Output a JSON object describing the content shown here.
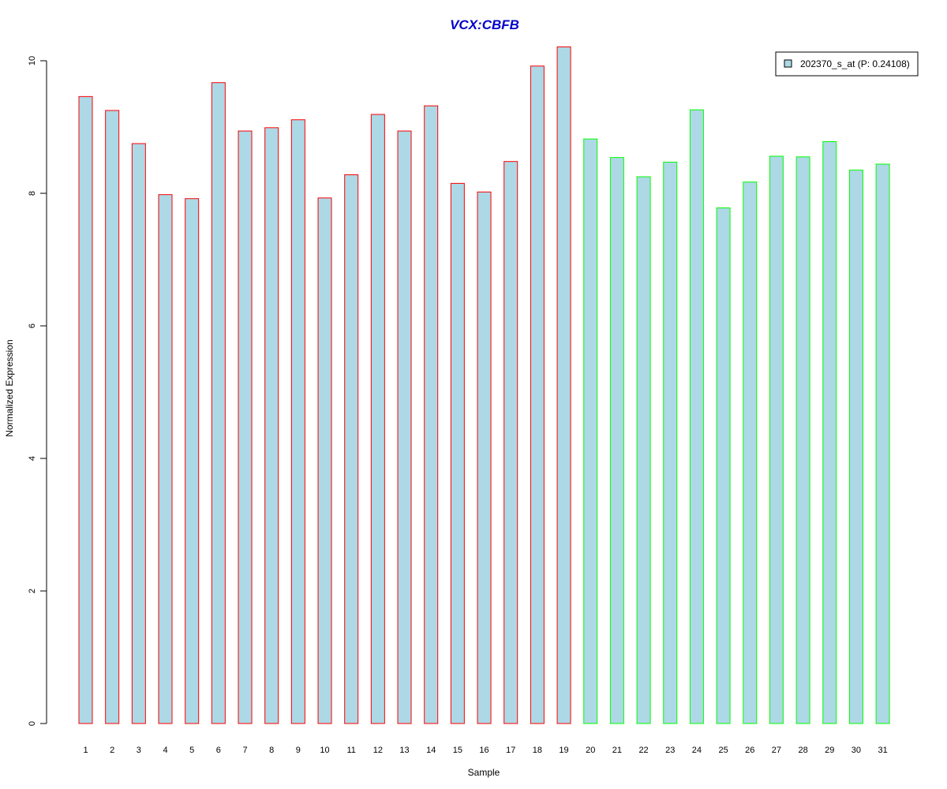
{
  "chart_data": {
    "type": "bar",
    "title": "VCX:CBFB",
    "xlabel": "Sample",
    "ylabel": "Normalized Expression",
    "categories": [
      "1",
      "2",
      "3",
      "4",
      "5",
      "6",
      "7",
      "8",
      "9",
      "10",
      "11",
      "12",
      "13",
      "14",
      "15",
      "16",
      "17",
      "18",
      "19",
      "20",
      "21",
      "22",
      "23",
      "24",
      "25",
      "26",
      "27",
      "28",
      "29",
      "30",
      "31"
    ],
    "values": [
      9.46,
      9.25,
      8.75,
      7.98,
      7.92,
      9.67,
      8.94,
      8.99,
      9.11,
      7.93,
      8.28,
      9.19,
      8.94,
      9.32,
      8.15,
      8.02,
      8.48,
      9.92,
      10.21,
      8.82,
      8.54,
      8.25,
      8.47,
      9.26,
      7.78,
      8.17,
      8.56,
      8.55,
      8.78,
      8.35,
      8.44
    ],
    "group": [
      "red",
      "red",
      "red",
      "red",
      "red",
      "red",
      "red",
      "red",
      "red",
      "red",
      "red",
      "red",
      "red",
      "red",
      "red",
      "red",
      "red",
      "red",
      "red",
      "green",
      "green",
      "green",
      "green",
      "green",
      "green",
      "green",
      "green",
      "green",
      "green",
      "green",
      "green"
    ],
    "ylim": [
      0,
      10.3
    ],
    "yticks": [
      0,
      2,
      4,
      6,
      8,
      10
    ],
    "legend": {
      "label": "202370_s_at (P: 0.24108)",
      "position": "top-right"
    },
    "grid": false,
    "colors": {
      "bar_fill": "#add8e6",
      "red_border": "#ff0000",
      "green_border": "#00ff00",
      "title": "#0000cd",
      "axis": "#000000"
    }
  }
}
